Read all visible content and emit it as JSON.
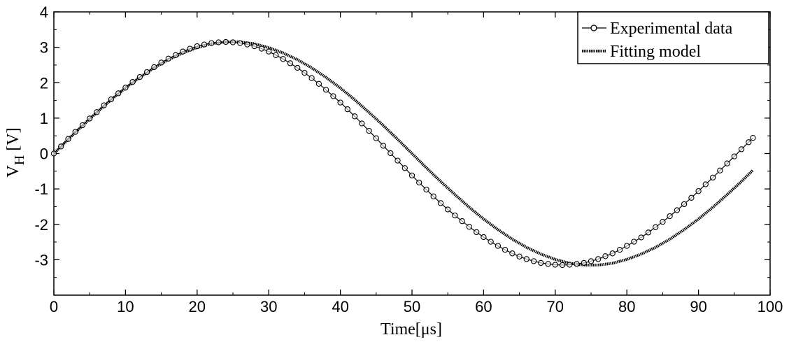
{
  "chart_data": {
    "type": "line",
    "xlabel": "Time[μs]",
    "ylabel_main": "V",
    "ylabel_sub": "H",
    "ylabel_unit": "[V]",
    "xlim": [
      0,
      100
    ],
    "ylim": [
      -4,
      4
    ],
    "x_ticks": [
      0,
      10,
      20,
      30,
      40,
      50,
      60,
      70,
      80,
      90,
      100
    ],
    "x_tick_labels": [
      "0",
      "10",
      "20",
      "30",
      "40",
      "50",
      "60",
      "70",
      "80",
      "90",
      "100"
    ],
    "y_ticks": [
      4,
      3,
      2,
      1,
      0,
      -1,
      -2,
      -3
    ],
    "y_tick_labels": [
      "4",
      "3",
      "2",
      "1",
      "0",
      "-1",
      "-2",
      "-3"
    ],
    "grid": false,
    "legend_position": "top-right",
    "series": [
      {
        "name": "Experimental data",
        "style": "line-with-circle-markers",
        "x": [
          0,
          1,
          2,
          3,
          4,
          5,
          6,
          7,
          8,
          9,
          10,
          11,
          12,
          13,
          14,
          15,
          16,
          17,
          18,
          19,
          20,
          21,
          22,
          23,
          24,
          25,
          26,
          27,
          28,
          29,
          30,
          31,
          32,
          33,
          34,
          35,
          36,
          37,
          38,
          39,
          40,
          41,
          42,
          43,
          44,
          45,
          46,
          47,
          48,
          49,
          50,
          51,
          52,
          53,
          54,
          55,
          56,
          57,
          58,
          59,
          60,
          61,
          62,
          63,
          64,
          65,
          66,
          67,
          68,
          69,
          70,
          71,
          72,
          73,
          74,
          75,
          76,
          77,
          78,
          79,
          80,
          81,
          82,
          83,
          84,
          85,
          86,
          87,
          88,
          89,
          90,
          91,
          92,
          93,
          94,
          95,
          96,
          97,
          97.6
        ],
        "y": [
          0.0,
          0.2,
          0.41,
          0.61,
          0.8,
          0.99,
          1.17,
          1.36,
          1.53,
          1.7,
          1.86,
          2.02,
          2.16,
          2.3,
          2.44,
          2.57,
          2.68,
          2.78,
          2.88,
          2.96,
          3.03,
          3.08,
          3.12,
          3.14,
          3.15,
          3.14,
          3.12,
          3.08,
          3.03,
          2.96,
          2.88,
          2.78,
          2.67,
          2.55,
          2.42,
          2.28,
          2.13,
          1.97,
          1.8,
          1.62,
          1.44,
          1.25,
          1.05,
          0.85,
          0.64,
          0.43,
          0.22,
          0.01,
          -0.2,
          -0.41,
          -0.62,
          -0.82,
          -1.02,
          -1.21,
          -1.4,
          -1.58,
          -1.75,
          -1.91,
          -2.07,
          -2.22,
          -2.36,
          -2.49,
          -2.61,
          -2.72,
          -2.82,
          -2.91,
          -2.98,
          -3.04,
          -3.09,
          -3.12,
          -3.14,
          -3.15,
          -3.14,
          -3.12,
          -3.09,
          -3.04,
          -2.98,
          -2.9,
          -2.82,
          -2.72,
          -2.61,
          -2.49,
          -2.37,
          -2.23,
          -2.08,
          -1.93,
          -1.77,
          -1.6,
          -1.43,
          -1.25,
          -1.06,
          -0.87,
          -0.68,
          -0.48,
          -0.28,
          -0.08,
          0.12,
          0.32,
          0.44
        ]
      },
      {
        "name": "Fitting model",
        "style": "thick-dashed-line",
        "x": [
          0,
          2,
          4,
          6,
          8,
          10,
          12,
          14,
          16,
          18,
          20,
          22,
          24,
          26,
          28,
          30,
          32,
          34,
          36,
          38,
          40,
          42,
          44,
          46,
          48,
          50,
          52,
          54,
          56,
          58,
          60,
          62,
          64,
          66,
          68,
          70,
          72,
          74,
          76,
          78,
          80,
          82,
          84,
          86,
          88,
          90,
          92,
          94,
          96,
          97.6
        ],
        "y": [
          0.0,
          0.4,
          0.79,
          1.16,
          1.52,
          1.85,
          2.15,
          2.42,
          2.65,
          2.84,
          2.99,
          3.1,
          3.15,
          3.15,
          3.1,
          2.99,
          2.84,
          2.65,
          2.42,
          2.15,
          1.85,
          1.52,
          1.16,
          0.79,
          0.4,
          0.0,
          -0.4,
          -0.79,
          -1.16,
          -1.52,
          -1.85,
          -2.15,
          -2.42,
          -2.65,
          -2.84,
          -2.99,
          -3.1,
          -3.15,
          -3.15,
          -3.1,
          -2.99,
          -2.84,
          -2.65,
          -2.42,
          -2.15,
          -1.85,
          -1.52,
          -1.16,
          -0.79,
          -0.47
        ]
      }
    ]
  }
}
